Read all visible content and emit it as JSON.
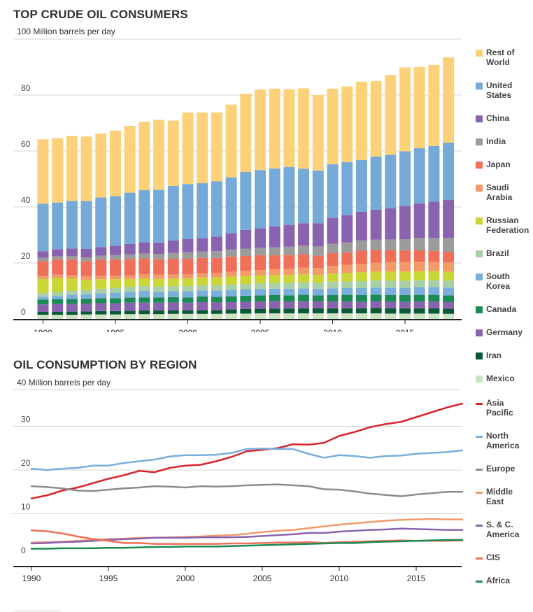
{
  "chart_data": [
    {
      "type": "bar",
      "stacked": true,
      "title": "TOP CRUDE OIL CONSUMERS",
      "ylabel": "100 Million barrels per day",
      "ylim": [
        0,
        100
      ],
      "yticks": [
        0,
        20,
        40,
        60,
        80
      ],
      "xticks": [
        1990,
        1995,
        2000,
        2005,
        2010,
        2015
      ],
      "xtick_labels": [
        "1990",
        "1995",
        "2000",
        "2005",
        "2010",
        "2015"
      ],
      "ytick_labels": [
        "0",
        "20",
        "40",
        "60",
        "80"
      ],
      "categories": [
        1990,
        1991,
        1992,
        1993,
        1994,
        1995,
        1996,
        1997,
        1998,
        1999,
        2000,
        2001,
        2002,
        2003,
        2004,
        2005,
        2006,
        2007,
        2008,
        2009,
        2010,
        2011,
        2012,
        2013,
        2014,
        2015,
        2016,
        2017,
        2018
      ],
      "series": [
        {
          "name": "Mexico",
          "color": "#c9e3c3",
          "values": [
            1.5,
            1.5,
            1.5,
            1.6,
            1.6,
            1.6,
            1.7,
            1.7,
            1.7,
            1.8,
            1.8,
            1.8,
            1.8,
            1.9,
            1.9,
            2.0,
            2.0,
            2.0,
            2.0,
            2.0,
            2.0,
            2.0,
            2.0,
            2.0,
            1.9,
            1.9,
            1.9,
            1.9,
            1.8
          ]
        },
        {
          "name": "Iran",
          "color": "#0b5a36",
          "values": [
            1.0,
            1.0,
            1.1,
            1.1,
            1.2,
            1.2,
            1.2,
            1.3,
            1.3,
            1.3,
            1.3,
            1.4,
            1.4,
            1.5,
            1.6,
            1.6,
            1.7,
            1.7,
            1.8,
            1.8,
            1.8,
            1.8,
            1.8,
            1.9,
            1.9,
            1.9,
            1.9,
            1.9,
            1.9
          ]
        },
        {
          "name": "Germany",
          "color": "#8a63b0",
          "values": [
            2.7,
            2.8,
            2.8,
            2.8,
            2.8,
            2.8,
            2.9,
            2.8,
            2.8,
            2.8,
            2.7,
            2.8,
            2.7,
            2.6,
            2.6,
            2.6,
            2.6,
            2.4,
            2.5,
            2.4,
            2.4,
            2.4,
            2.3,
            2.4,
            2.3,
            2.3,
            2.4,
            2.4,
            2.3
          ]
        },
        {
          "name": "Canada",
          "color": "#1b8a55",
          "values": [
            1.7,
            1.7,
            1.7,
            1.7,
            1.8,
            1.8,
            1.8,
            1.9,
            1.9,
            1.9,
            1.9,
            2.0,
            2.0,
            2.1,
            2.2,
            2.2,
            2.2,
            2.3,
            2.3,
            2.2,
            2.3,
            2.4,
            2.4,
            2.4,
            2.4,
            2.4,
            2.4,
            2.4,
            2.4
          ]
        },
        {
          "name": "South Korea",
          "color": "#7aaedc",
          "values": [
            1.0,
            1.2,
            1.5,
            1.6,
            1.8,
            2.0,
            2.1,
            2.3,
            2.0,
            2.1,
            2.2,
            2.2,
            2.2,
            2.3,
            2.3,
            2.3,
            2.3,
            2.4,
            2.3,
            2.3,
            2.4,
            2.4,
            2.5,
            2.5,
            2.5,
            2.6,
            2.8,
            2.8,
            2.8
          ]
        },
        {
          "name": "Brazil",
          "color": "#a8cfa6",
          "values": [
            1.4,
            1.5,
            1.5,
            1.5,
            1.6,
            1.7,
            1.8,
            1.8,
            1.9,
            1.9,
            1.9,
            1.9,
            1.9,
            1.9,
            1.9,
            2.0,
            2.0,
            2.1,
            2.2,
            2.2,
            2.4,
            2.4,
            2.5,
            2.6,
            2.7,
            2.6,
            2.5,
            2.5,
            2.5
          ]
        },
        {
          "name": "Russian Federation",
          "color": "#c9d634",
          "values": [
            5.0,
            4.9,
            4.4,
            3.7,
            3.4,
            3.1,
            2.8,
            2.7,
            2.7,
            2.6,
            2.6,
            2.7,
            2.8,
            2.8,
            2.8,
            2.8,
            2.8,
            2.8,
            2.8,
            2.8,
            2.9,
            3.1,
            3.2,
            3.2,
            3.3,
            3.2,
            3.2,
            3.2,
            3.2
          ]
        },
        {
          "name": "Saudi Arabia",
          "color": "#f29a69",
          "values": [
            1.1,
            1.2,
            1.2,
            1.3,
            1.3,
            1.3,
            1.3,
            1.4,
            1.5,
            1.5,
            1.6,
            1.6,
            1.7,
            1.8,
            1.9,
            2.0,
            2.1,
            2.2,
            2.4,
            2.5,
            2.8,
            2.8,
            3.0,
            3.1,
            3.3,
            3.4,
            3.4,
            3.3,
            3.3
          ]
        },
        {
          "name": "Japan",
          "color": "#ef6f58",
          "values": [
            5.3,
            5.4,
            5.5,
            5.4,
            5.7,
            5.7,
            5.8,
            5.7,
            5.5,
            5.6,
            5.5,
            5.4,
            5.3,
            5.4,
            5.3,
            5.3,
            5.2,
            5.0,
            4.8,
            4.4,
            4.5,
            4.5,
            4.7,
            4.5,
            4.3,
            4.1,
            4.0,
            3.9,
            3.8
          ]
        },
        {
          "name": "India",
          "color": "#9b9b9b",
          "values": [
            1.2,
            1.2,
            1.3,
            1.3,
            1.4,
            1.6,
            1.7,
            1.8,
            1.9,
            2.1,
            2.3,
            2.3,
            2.4,
            2.5,
            2.6,
            2.6,
            2.7,
            2.9,
            3.1,
            3.3,
            3.3,
            3.5,
            3.7,
            3.7,
            3.8,
            4.1,
            4.5,
            4.7,
            5.0
          ]
        },
        {
          "name": "China",
          "color": "#8a63b0",
          "values": [
            2.3,
            2.5,
            2.7,
            3.0,
            3.1,
            3.4,
            3.7,
            4.0,
            4.1,
            4.4,
            4.7,
            4.8,
            5.2,
            5.8,
            6.7,
            7.0,
            7.5,
            7.8,
            8.0,
            8.3,
            9.3,
            9.8,
            10.2,
            10.7,
            11.2,
            11.9,
            12.3,
            12.9,
            13.5
          ]
        },
        {
          "name": "United States",
          "color": "#75a9d8",
          "values": [
            17.0,
            16.7,
            17.0,
            17.2,
            17.7,
            17.7,
            18.3,
            18.6,
            18.9,
            19.5,
            19.7,
            19.6,
            19.8,
            20.0,
            20.7,
            20.8,
            20.7,
            20.7,
            19.5,
            18.8,
            19.2,
            19.0,
            18.5,
            19.0,
            19.1,
            19.5,
            19.7,
            19.9,
            20.5
          ]
        },
        {
          "name": "Rest of World",
          "color": "#fdd17a",
          "values": [
            23.0,
            23.0,
            23.2,
            23.0,
            22.9,
            23.4,
            23.9,
            24.5,
            25.0,
            23.4,
            25.6,
            25.3,
            24.6,
            26.0,
            28.0,
            28.8,
            28.5,
            27.8,
            28.7,
            27.0,
            27.0,
            27.0,
            28.0,
            27.0,
            28.5,
            30.0,
            29.0,
            29.0,
            30.5
          ]
        }
      ],
      "legend": [
        "Rest of World",
        "United States",
        "China",
        "India",
        "Japan",
        "Saudi Arabia",
        "Russian Federation",
        "Brazil",
        "South Korea",
        "Canada",
        "Germany",
        "Iran",
        "Mexico"
      ]
    },
    {
      "type": "line",
      "title": "OIL CONSUMPTION BY REGION",
      "ylabel": "40 Million barrels per day",
      "ylim": [
        0,
        40
      ],
      "yticks": [
        0,
        10,
        20,
        30
      ],
      "ytick_labels": [
        "0",
        "10",
        "20",
        "30"
      ],
      "xticks": [
        1990,
        1995,
        2000,
        2005,
        2010,
        2015
      ],
      "xtick_labels": [
        "1990",
        "1995",
        "2000",
        "2005",
        "2010",
        "2015"
      ],
      "x": [
        1990,
        1991,
        1992,
        1993,
        1994,
        1995,
        1996,
        1997,
        1998,
        1999,
        2000,
        2001,
        2002,
        2003,
        2004,
        2005,
        2006,
        2007,
        2008,
        2009,
        2010,
        2011,
        2012,
        2013,
        2014,
        2015,
        2016,
        2017,
        2018
      ],
      "series": [
        {
          "name": "Asia Pacific",
          "color": "#d7262e",
          "values": [
            13.5,
            14.2,
            15.3,
            16.0,
            17.0,
            18.0,
            18.8,
            19.8,
            19.5,
            20.5,
            21.0,
            21.2,
            22.0,
            23.0,
            24.3,
            24.6,
            25.0,
            25.9,
            25.8,
            26.2,
            27.8,
            28.7,
            29.8,
            30.5,
            31.0,
            32.1,
            33.2,
            34.3,
            35.2
          ]
        },
        {
          "name": "North America",
          "color": "#7aaedc",
          "values": [
            20.3,
            20.0,
            20.3,
            20.5,
            21.0,
            21.0,
            21.6,
            22.0,
            22.4,
            23.1,
            23.4,
            23.4,
            23.5,
            23.9,
            24.8,
            24.9,
            24.8,
            24.8,
            23.7,
            22.8,
            23.4,
            23.2,
            22.8,
            23.2,
            23.3,
            23.7,
            23.9,
            24.1,
            24.5
          ]
        },
        {
          "name": "Europe",
          "color": "#8c8c8c",
          "values": [
            16.3,
            16.1,
            15.8,
            15.3,
            15.2,
            15.5,
            15.8,
            16.0,
            16.3,
            16.2,
            16.0,
            16.3,
            16.2,
            16.3,
            16.5,
            16.6,
            16.7,
            16.5,
            16.3,
            15.6,
            15.5,
            15.1,
            14.6,
            14.3,
            14.0,
            14.4,
            14.7,
            15.0,
            15.0
          ]
        },
        {
          "name": "Middle East",
          "color": "#f29a69",
          "values": [
            3.4,
            3.5,
            3.6,
            3.8,
            4.0,
            4.2,
            4.3,
            4.5,
            4.5,
            4.6,
            4.7,
            4.8,
            5.0,
            5.1,
            5.4,
            5.8,
            6.1,
            6.3,
            6.7,
            7.1,
            7.5,
            7.8,
            8.1,
            8.4,
            8.6,
            8.7,
            8.8,
            8.7,
            8.7
          ]
        },
        {
          "name": "S. & C. America",
          "color": "#8a63b0",
          "values": [
            3.2,
            3.3,
            3.5,
            3.6,
            3.8,
            4.0,
            4.2,
            4.3,
            4.5,
            4.5,
            4.5,
            4.6,
            4.6,
            4.6,
            4.7,
            4.9,
            5.1,
            5.3,
            5.6,
            5.6,
            5.9,
            6.1,
            6.3,
            6.4,
            6.6,
            6.5,
            6.4,
            6.3,
            6.3
          ]
        },
        {
          "name": "CIS",
          "color": "#ef6f58",
          "values": [
            6.2,
            6.0,
            5.5,
            4.8,
            4.2,
            3.8,
            3.3,
            3.3,
            3.1,
            3.1,
            3.1,
            3.1,
            3.1,
            3.2,
            3.2,
            3.3,
            3.4,
            3.4,
            3.5,
            3.3,
            3.5,
            3.6,
            3.7,
            3.8,
            3.9,
            3.8,
            3.8,
            3.8,
            3.9
          ]
        },
        {
          "name": "Africa",
          "color": "#1b8a55",
          "values": [
            2.0,
            2.0,
            2.1,
            2.1,
            2.1,
            2.2,
            2.2,
            2.3,
            2.4,
            2.4,
            2.5,
            2.5,
            2.5,
            2.6,
            2.7,
            2.8,
            2.9,
            3.0,
            3.1,
            3.2,
            3.3,
            3.3,
            3.5,
            3.6,
            3.7,
            3.8,
            3.9,
            4.0,
            4.0
          ]
        }
      ],
      "legend": [
        "Asia Pacific",
        "North America",
        "Europe",
        "Middle East",
        "S. & C. America",
        "CIS",
        "Africa"
      ]
    }
  ],
  "legend_labels": {
    "Rest of World": "Rest of\nWorld",
    "United States": "United\nStates",
    "Saudi Arabia": "Saudi\nArabia",
    "Russian Federation": "Russian\nFederation",
    "South Korea": "South\nKorea",
    "Asia Pacific": "Asia\nPacific",
    "North America": "North\nAmerica",
    "Middle East": "Middle\nEast",
    "S. & C. America": "S. & C.\nAmerica"
  }
}
